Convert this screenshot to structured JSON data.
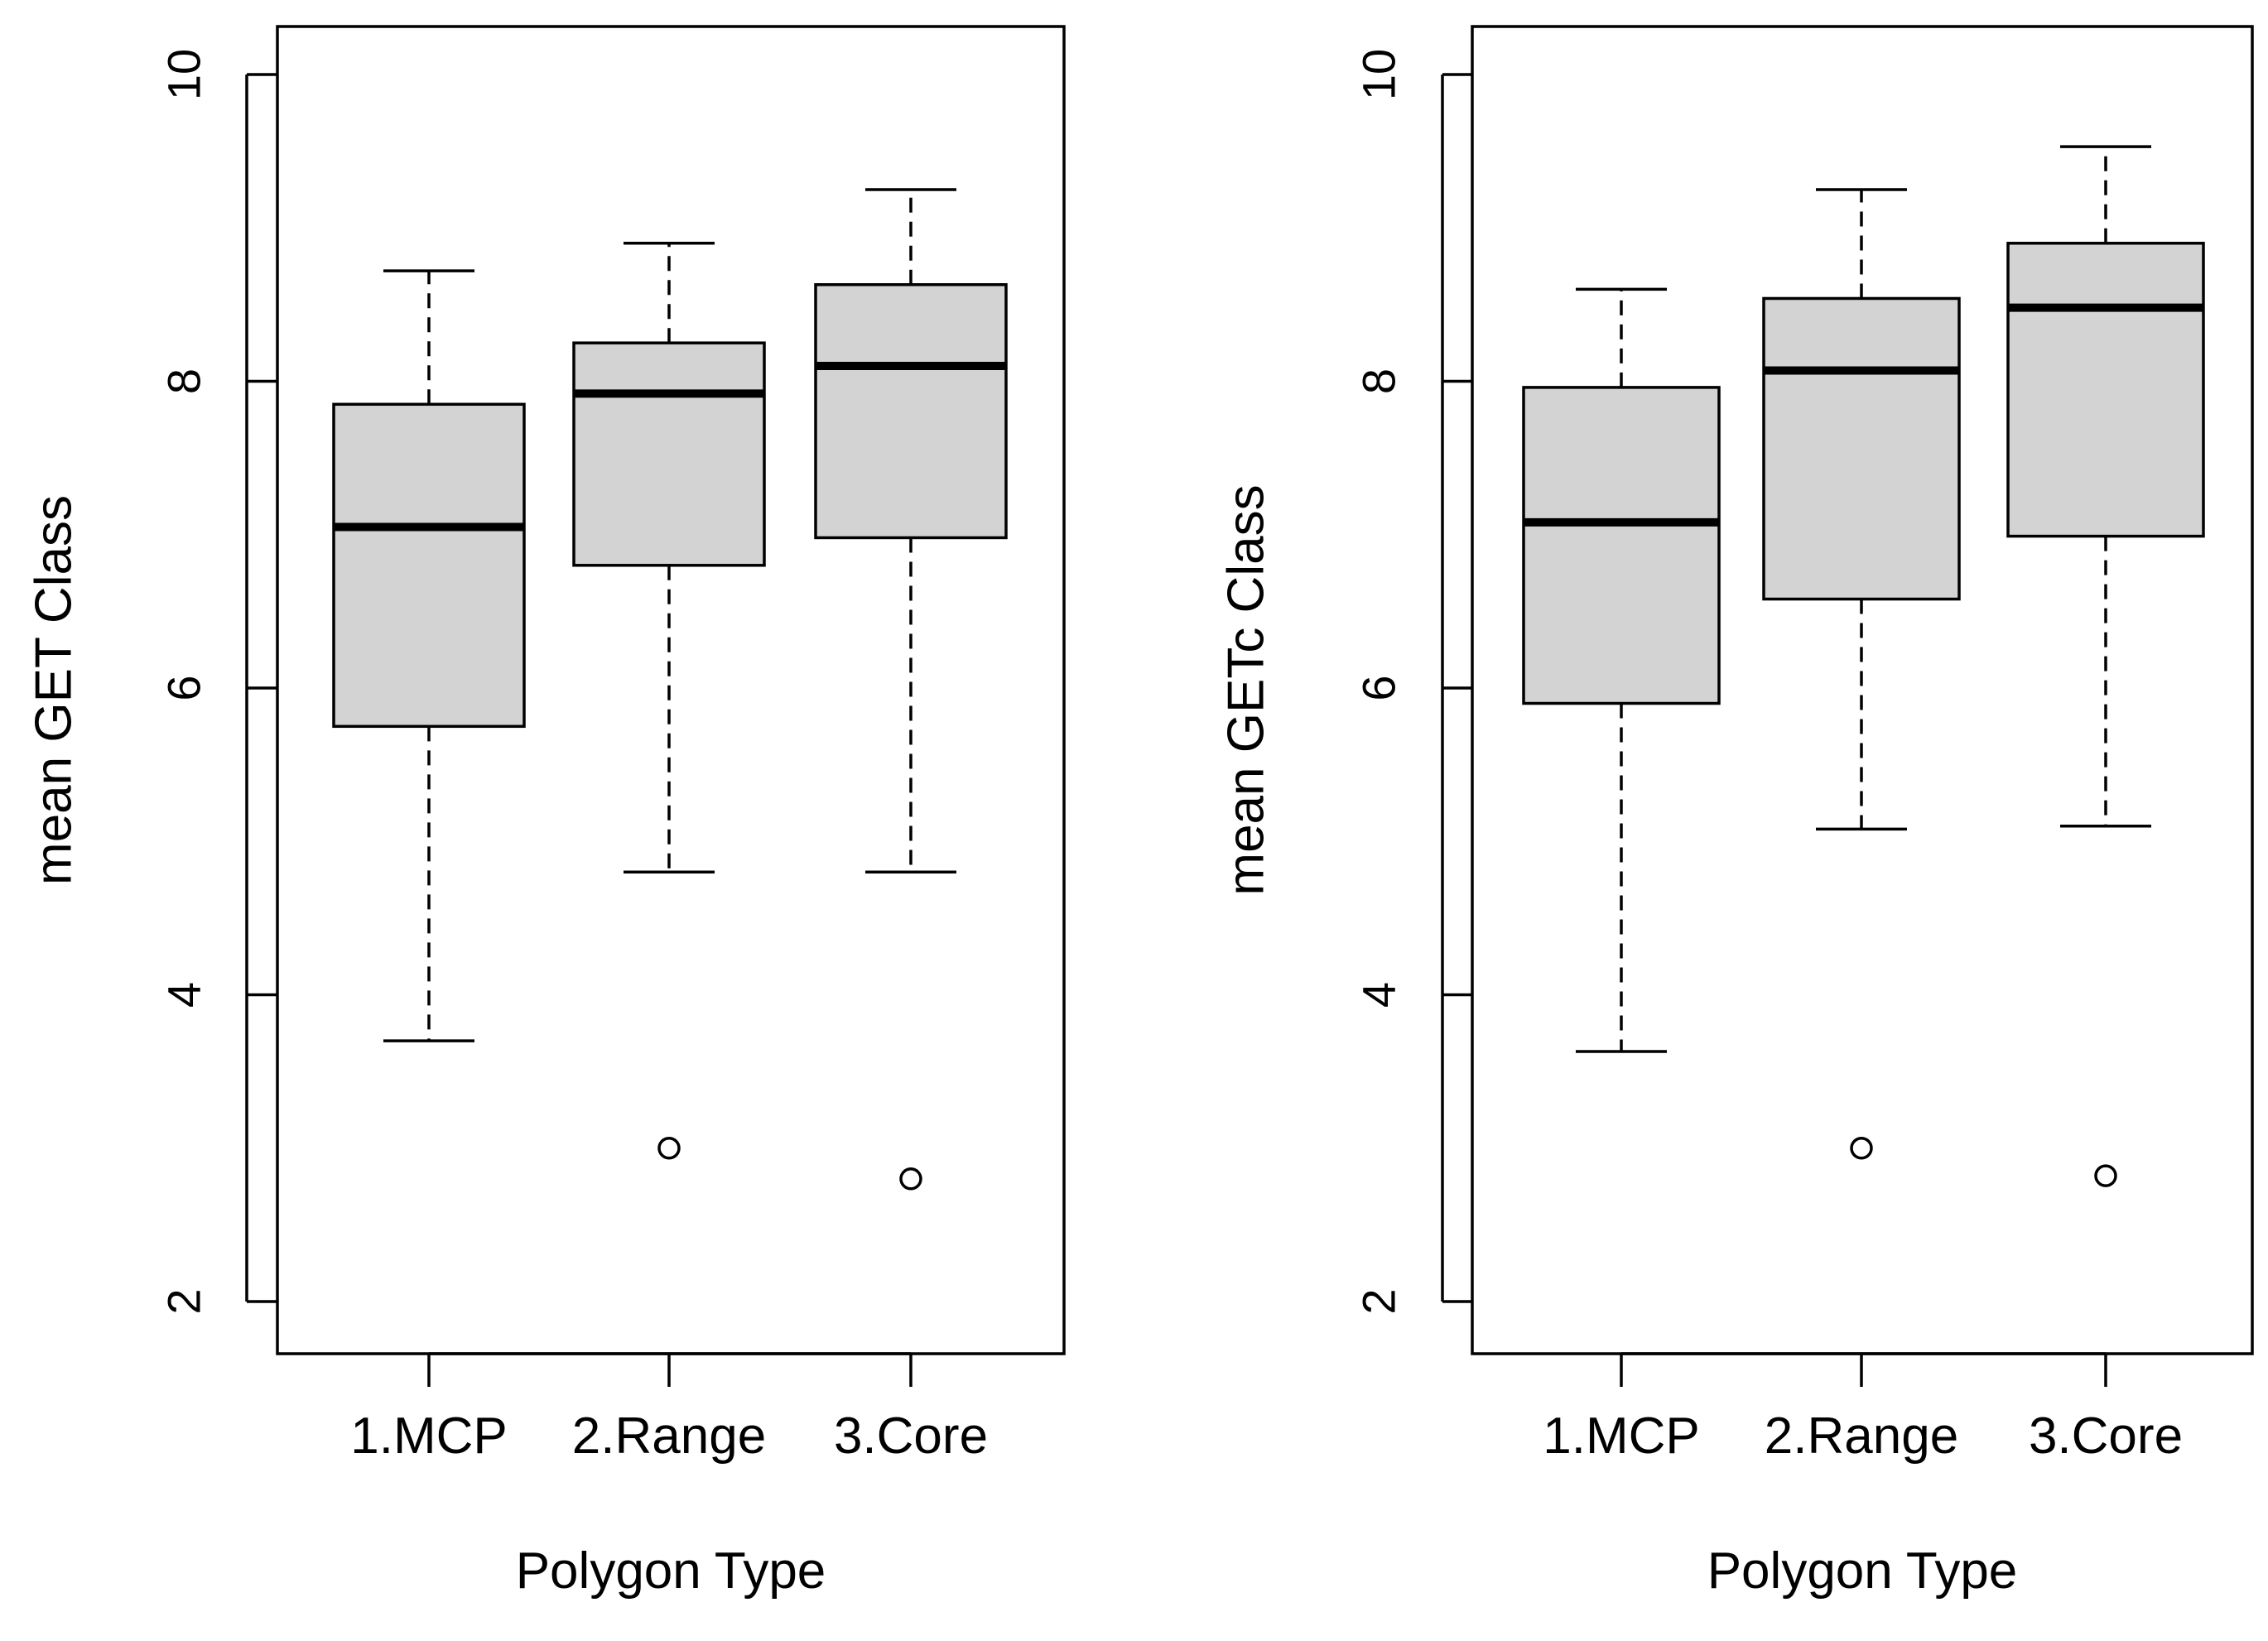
{
  "chart_data": [
    {
      "type": "boxplot",
      "xlabel": "Polygon Type",
      "ylabel": "mean GET Class",
      "ylim": [
        1.65,
        10.3
      ],
      "yticks": [
        2,
        4,
        6,
        8,
        10
      ],
      "categories": [
        "1.MCP",
        "2.Range",
        "3.Core"
      ],
      "box_color": "#d3d3d3",
      "boxes": [
        {
          "category": "1.MCP",
          "whisker_low": 3.7,
          "q1": 5.75,
          "median": 7.05,
          "q3": 7.85,
          "whisker_high": 8.72,
          "outliers": []
        },
        {
          "category": "2.Range",
          "whisker_low": 4.8,
          "q1": 6.8,
          "median": 7.92,
          "q3": 8.25,
          "whisker_high": 8.9,
          "outliers": [
            3.0
          ]
        },
        {
          "category": "3.Core",
          "whisker_low": 4.8,
          "q1": 6.98,
          "median": 8.1,
          "q3": 8.63,
          "whisker_high": 9.25,
          "outliers": [
            2.8
          ]
        }
      ]
    },
    {
      "type": "boxplot",
      "xlabel": "Polygon Type",
      "ylabel": "mean GETc Class",
      "ylim": [
        1.65,
        10.3
      ],
      "yticks": [
        2,
        4,
        6,
        8,
        10
      ],
      "categories": [
        "1.MCP",
        "2.Range",
        "3.Core"
      ],
      "box_color": "#d3d3d3",
      "boxes": [
        {
          "category": "1.MCP",
          "whisker_low": 3.63,
          "q1": 5.9,
          "median": 7.08,
          "q3": 7.96,
          "whisker_high": 8.6,
          "outliers": []
        },
        {
          "category": "2.Range",
          "whisker_low": 5.08,
          "q1": 6.58,
          "median": 8.07,
          "q3": 8.54,
          "whisker_high": 9.25,
          "outliers": [
            3.0
          ]
        },
        {
          "category": "3.Core",
          "whisker_low": 5.1,
          "q1": 6.99,
          "median": 8.48,
          "q3": 8.9,
          "whisker_high": 9.53,
          "outliers": [
            2.82
          ]
        }
      ]
    }
  ]
}
